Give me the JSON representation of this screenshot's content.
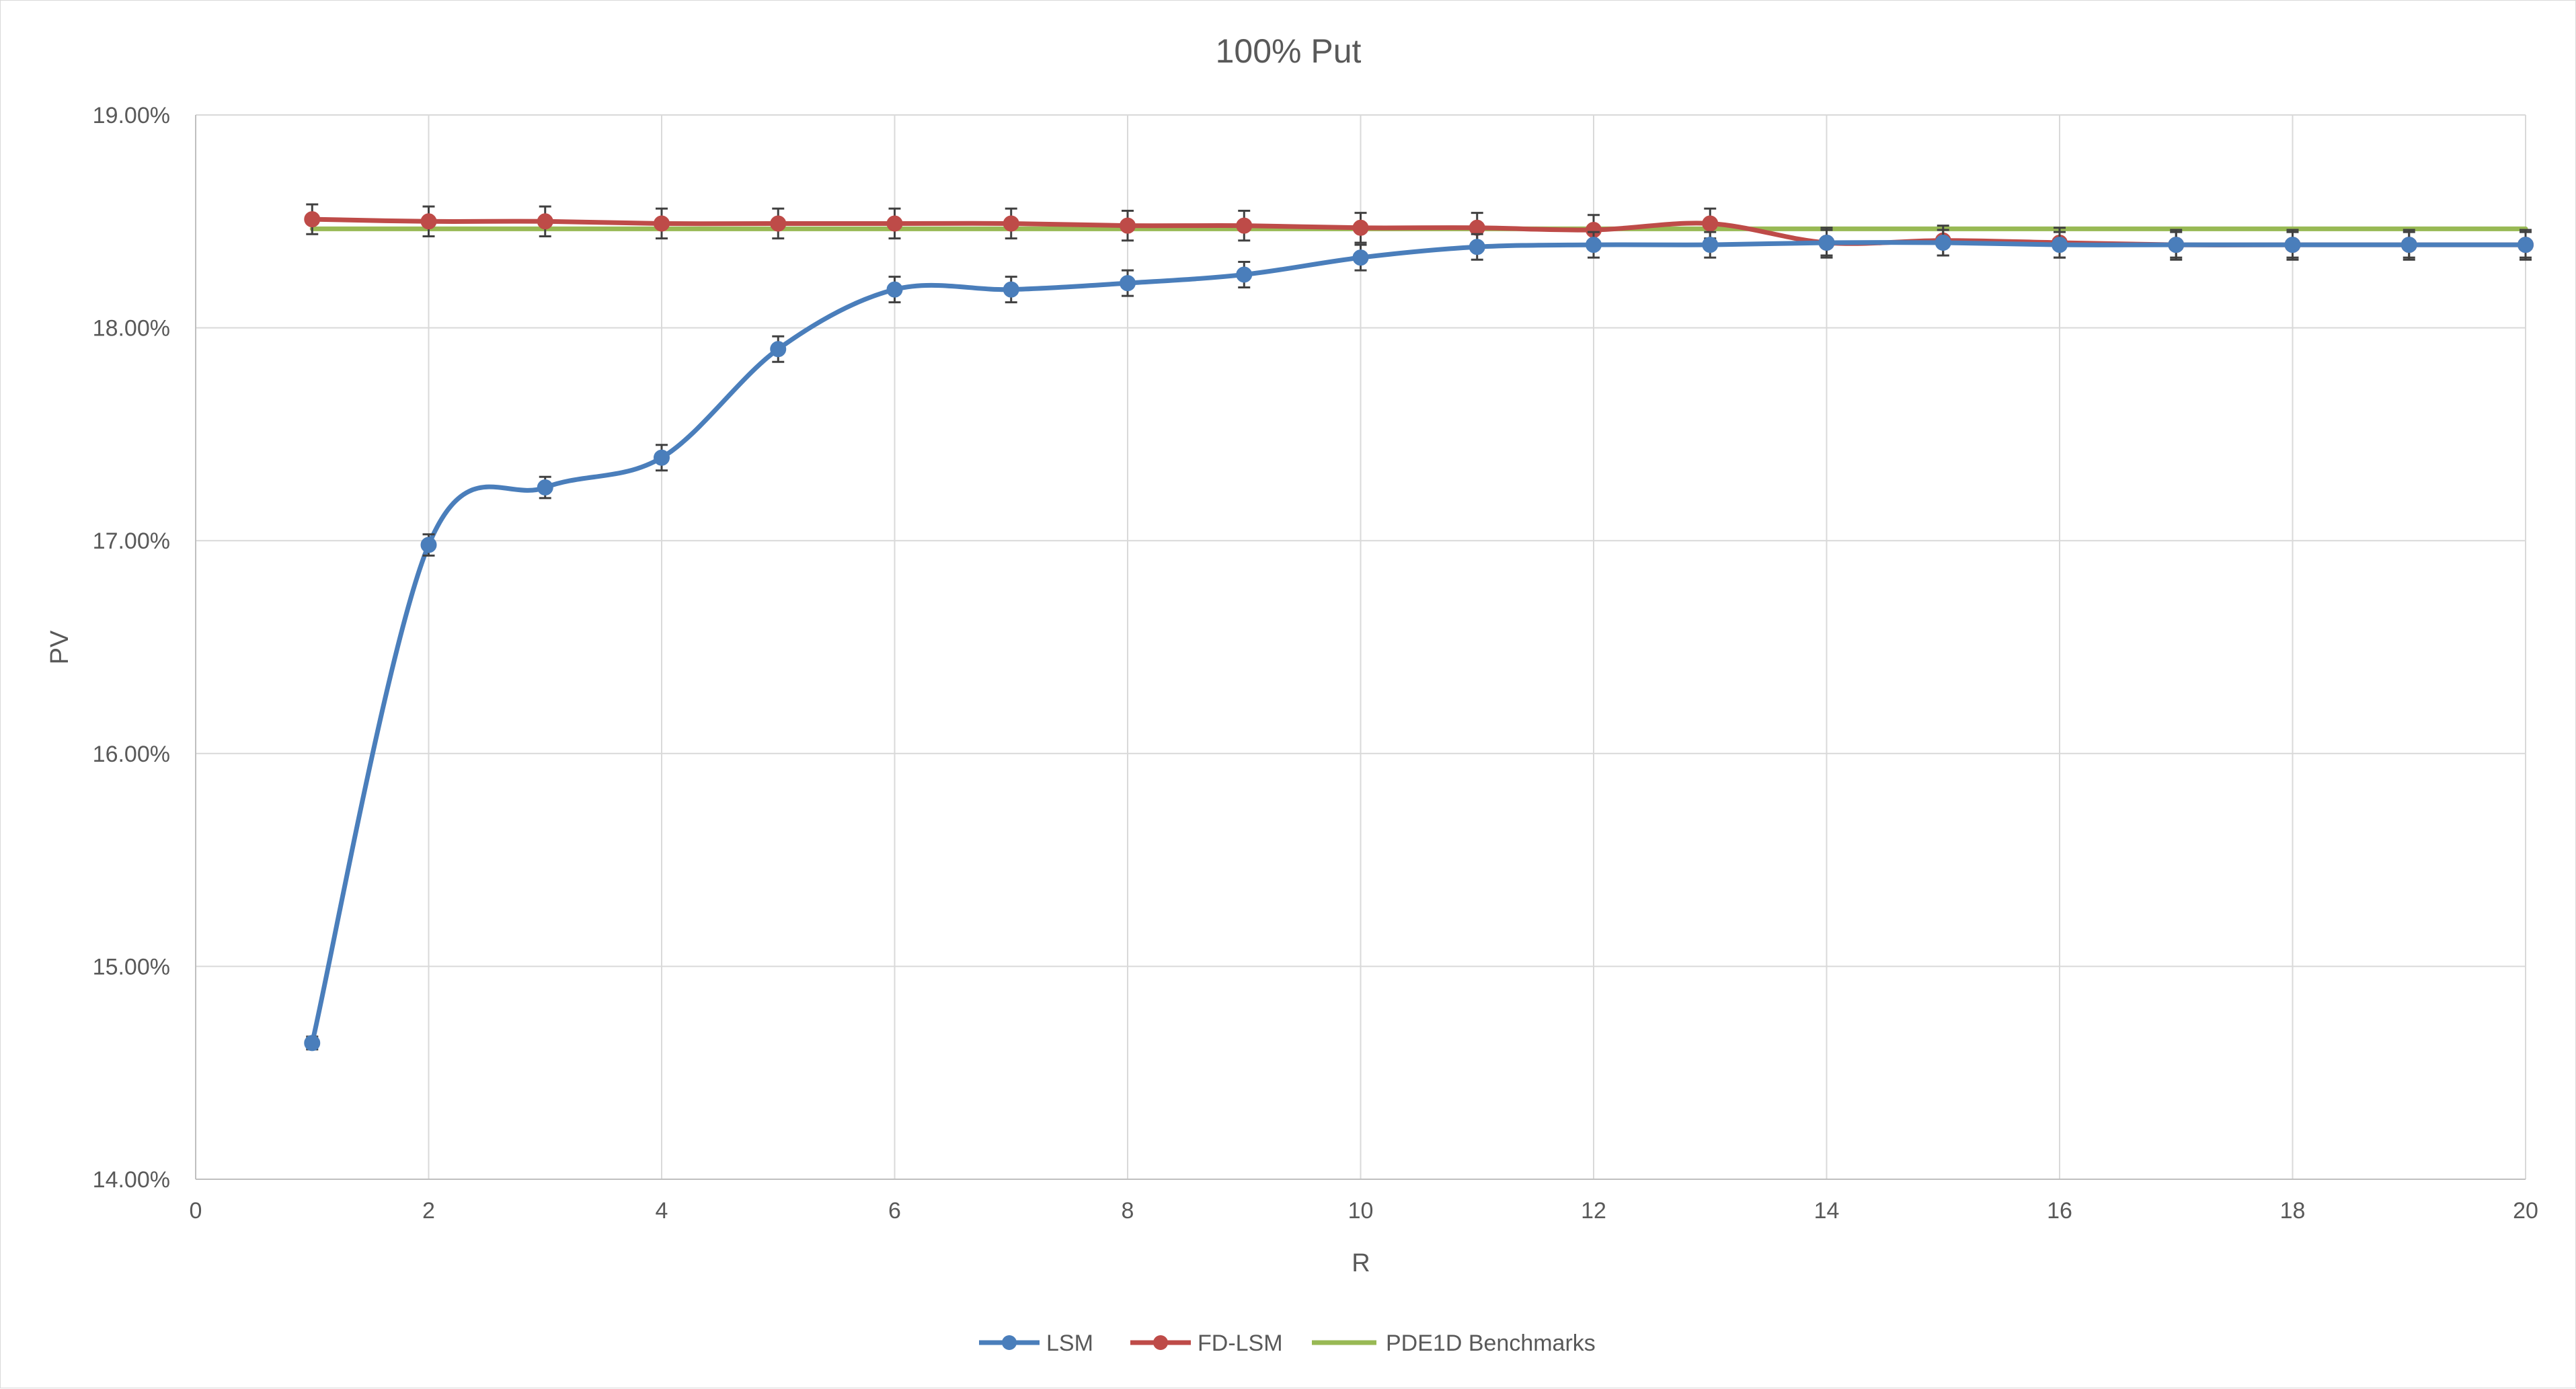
{
  "chart_data": {
    "type": "line",
    "title": "100% Put",
    "xlabel": "R",
    "ylabel": "PV",
    "xlim": [
      0,
      20
    ],
    "ylim": [
      0.14,
      0.19
    ],
    "x_ticks": [
      0,
      2,
      4,
      6,
      8,
      10,
      12,
      14,
      16,
      18,
      20
    ],
    "y_ticks": [
      0.14,
      0.15,
      0.16,
      0.17,
      0.18,
      0.19
    ],
    "y_tick_labels": [
      "14.00%",
      "15.00%",
      "16.00%",
      "17.00%",
      "18.00%",
      "19.00%"
    ],
    "x_tick_labels": [
      "0",
      "2",
      "4",
      "6",
      "8",
      "10",
      "12",
      "14",
      "16",
      "18",
      "20"
    ],
    "grid": true,
    "legend_position": "bottom",
    "series": [
      {
        "name": "LSM",
        "color": "#4a7ebb",
        "marker": "circle",
        "smooth": true,
        "error_bars": true,
        "x": [
          1,
          2,
          3,
          4,
          5,
          6,
          7,
          8,
          9,
          10,
          11,
          12,
          13,
          14,
          15,
          16,
          17,
          18,
          19,
          20
        ],
        "values": [
          0.1464,
          0.1698,
          0.1725,
          0.1739,
          0.179,
          0.1818,
          0.1818,
          0.1821,
          0.1825,
          0.1833,
          0.1838,
          0.1839,
          0.1839,
          0.184,
          0.184,
          0.1839,
          0.1839,
          0.1839,
          0.1839,
          0.1839
        ],
        "error": [
          0.0003,
          0.0005,
          0.0005,
          0.0006,
          0.0006,
          0.0006,
          0.0006,
          0.0006,
          0.0006,
          0.0006,
          0.0006,
          0.0006,
          0.0006,
          0.0006,
          0.0006,
          0.0006,
          0.0006,
          0.0006,
          0.0006,
          0.0006
        ]
      },
      {
        "name": "FD-LSM",
        "color": "#be4b48",
        "marker": "circle",
        "smooth": true,
        "error_bars": true,
        "x": [
          1,
          2,
          3,
          4,
          5,
          6,
          7,
          8,
          9,
          10,
          11,
          12,
          13,
          14,
          15,
          16,
          17,
          18,
          19,
          20
        ],
        "values": [
          0.1851,
          0.185,
          0.185,
          0.1849,
          0.1849,
          0.1849,
          0.1849,
          0.1848,
          0.1848,
          0.1847,
          0.1847,
          0.1846,
          0.1849,
          0.184,
          0.1841,
          0.184,
          0.1839,
          0.1839,
          0.1839,
          0.1839
        ],
        "error": [
          0.0007,
          0.0007,
          0.0007,
          0.0007,
          0.0007,
          0.0007,
          0.0007,
          0.0007,
          0.0007,
          0.0007,
          0.0007,
          0.0007,
          0.0007,
          0.0007,
          0.0007,
          0.0007,
          0.0007,
          0.0007,
          0.0007,
          0.0007
        ]
      },
      {
        "name": "PDE1D Benchmarks",
        "color": "#98b954",
        "marker": "none",
        "smooth": false,
        "error_bars": false,
        "x": [
          1,
          20
        ],
        "values": [
          0.18465,
          0.18465
        ]
      }
    ]
  }
}
